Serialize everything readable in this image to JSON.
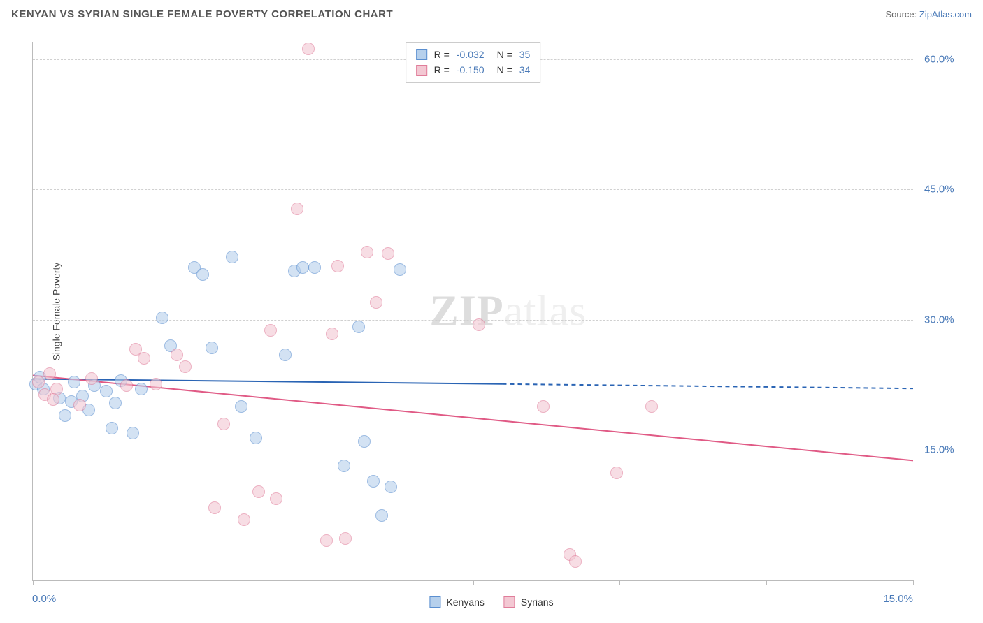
{
  "title": "KENYAN VS SYRIAN SINGLE FEMALE POVERTY CORRELATION CHART",
  "source_label": "Source: ",
  "source_name": "ZipAtlas.com",
  "watermark_a": "ZIP",
  "watermark_b": "atlas",
  "chart": {
    "type": "scatter",
    "y_axis_title": "Single Female Poverty",
    "xlim": [
      0,
      15
    ],
    "ylim": [
      0,
      62
    ],
    "x_left_label": "0.0%",
    "x_right_label": "15.0%",
    "ytick_values": [
      15,
      30,
      45,
      60
    ],
    "ytick_labels": [
      "15.0%",
      "30.0%",
      "45.0%",
      "60.0%"
    ],
    "xtick_values": [
      0,
      2.5,
      5,
      7.5,
      10,
      12.5,
      15
    ],
    "grid_color": "#d0d0d0",
    "axis_color": "#bbbbbb",
    "background_color": "#ffffff",
    "point_radius": 9,
    "point_opacity": 0.6,
    "point_stroke_opacity": 0.9,
    "series": [
      {
        "name": "Kenyans",
        "color_fill": "#b6d0ec",
        "color_stroke": "#5b8fd0",
        "R": "-0.032",
        "N": "35",
        "trend": {
          "y_at_x0": 23.2,
          "y_at_xmax": 22.1,
          "solid_until_x": 8.0,
          "color": "#2a64b4",
          "width": 2
        },
        "points": [
          [
            0.05,
            22.6
          ],
          [
            0.12,
            23.4
          ],
          [
            0.18,
            22.0
          ],
          [
            0.45,
            21.0
          ],
          [
            0.55,
            19.0
          ],
          [
            0.65,
            20.6
          ],
          [
            0.7,
            22.8
          ],
          [
            0.85,
            21.2
          ],
          [
            0.95,
            19.6
          ],
          [
            1.05,
            22.4
          ],
          [
            1.25,
            21.8
          ],
          [
            1.35,
            17.5
          ],
          [
            1.4,
            20.4
          ],
          [
            1.5,
            23.0
          ],
          [
            1.7,
            17.0
          ],
          [
            1.85,
            22.0
          ],
          [
            2.2,
            30.2
          ],
          [
            2.35,
            27.0
          ],
          [
            2.75,
            36.0
          ],
          [
            2.9,
            35.2
          ],
          [
            3.05,
            26.8
          ],
          [
            3.4,
            37.2
          ],
          [
            3.55,
            20.0
          ],
          [
            3.8,
            16.4
          ],
          [
            4.3,
            26.0
          ],
          [
            4.45,
            35.6
          ],
          [
            4.6,
            36.0
          ],
          [
            4.8,
            36.0
          ],
          [
            5.3,
            13.2
          ],
          [
            5.55,
            29.2
          ],
          [
            5.65,
            16.0
          ],
          [
            5.8,
            11.4
          ],
          [
            5.95,
            7.5
          ],
          [
            6.1,
            10.8
          ],
          [
            6.25,
            35.8
          ]
        ]
      },
      {
        "name": "Syrians",
        "color_fill": "#f3c8d3",
        "color_stroke": "#e07d9a",
        "R": "-0.150",
        "N": "34",
        "trend": {
          "y_at_x0": 23.6,
          "y_at_xmax": 13.8,
          "solid_until_x": 15.0,
          "color": "#e05a85",
          "width": 2
        },
        "points": [
          [
            0.1,
            22.8
          ],
          [
            0.2,
            21.4
          ],
          [
            0.28,
            23.8
          ],
          [
            0.4,
            22.0
          ],
          [
            0.8,
            20.2
          ],
          [
            1.0,
            23.2
          ],
          [
            1.6,
            22.4
          ],
          [
            1.75,
            26.6
          ],
          [
            1.9,
            25.6
          ],
          [
            2.1,
            22.6
          ],
          [
            2.45,
            26.0
          ],
          [
            2.6,
            24.6
          ],
          [
            3.1,
            8.4
          ],
          [
            3.25,
            18.0
          ],
          [
            3.6,
            7.0
          ],
          [
            3.85,
            10.2
          ],
          [
            4.05,
            28.8
          ],
          [
            4.15,
            9.4
          ],
          [
            4.7,
            61.2
          ],
          [
            4.5,
            42.8
          ],
          [
            5.0,
            4.6
          ],
          [
            5.1,
            28.4
          ],
          [
            5.2,
            36.2
          ],
          [
            5.33,
            4.8
          ],
          [
            5.7,
            37.8
          ],
          [
            5.85,
            32.0
          ],
          [
            6.05,
            37.6
          ],
          [
            7.6,
            29.4
          ],
          [
            8.7,
            20.0
          ],
          [
            9.15,
            3.0
          ],
          [
            9.25,
            2.2
          ],
          [
            9.95,
            12.4
          ],
          [
            10.55,
            20.0
          ],
          [
            0.35,
            20.8
          ]
        ]
      }
    ]
  },
  "legend_bottom": [
    {
      "label": "Kenyans",
      "fill": "#b6d0ec",
      "stroke": "#5b8fd0"
    },
    {
      "label": "Syrians",
      "fill": "#f3c8d3",
      "stroke": "#e07d9a"
    }
  ]
}
